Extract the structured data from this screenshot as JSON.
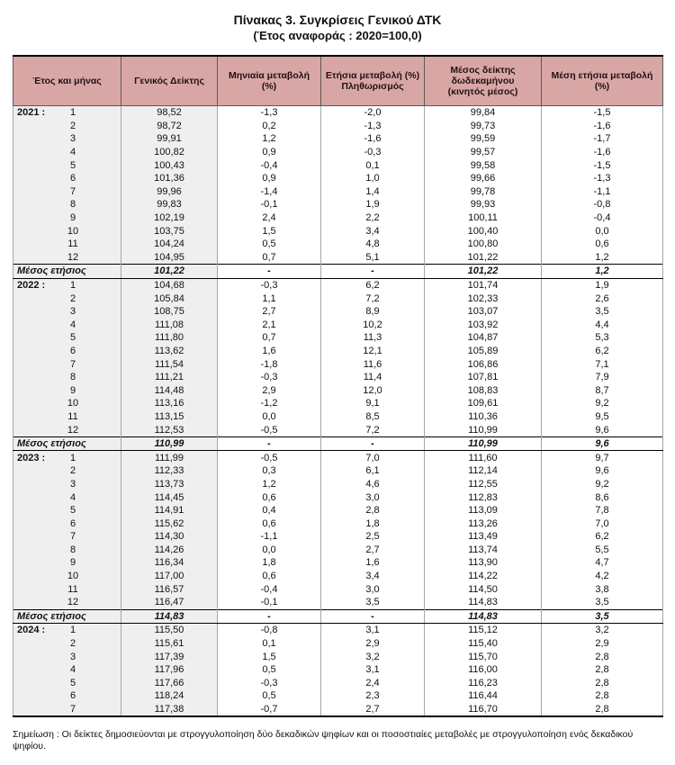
{
  "title": "Πίνακας 3. Συγκρίσεις Γενικού ΔΤΚ",
  "subtitle": "(Έτος αναφοράς : 2020=100,0)",
  "note": "Σημείωση : Οι δείκτες δημοσιεύονται με στρογγυλοποίηση δύο δεκαδικών ψηφίων και οι ποσοστιαίες μεταβολές με στρογγυλοποίηση ενός δεκαδικού ψηφίου.",
  "colors": {
    "header_bg": "#d9a6a6",
    "shaded_column_bg": "#efefef"
  },
  "table": {
    "headers": [
      "Έτος και μήνας",
      "Γενικός Δείκτης",
      "Μηνιαία μεταβολή\n(%)",
      "Ετήσια μεταβολή (%)\nΠληθωρισμός",
      "Μέσος δείκτης\nδωδεκαμήνου\n(κινητός μέσος)",
      "Μέση ετήσια μεταβολή\n(%)"
    ],
    "groups": [
      {
        "year_label": "2021 :",
        "rows": [
          {
            "month": "1",
            "values": [
              "98,52",
              "-1,3",
              "-2,0",
              "99,84",
              "-1,5"
            ]
          },
          {
            "month": "2",
            "values": [
              "98,72",
              "0,2",
              "-1,3",
              "99,73",
              "-1,6"
            ]
          },
          {
            "month": "3",
            "values": [
              "99,91",
              "1,2",
              "-1,6",
              "99,59",
              "-1,7"
            ]
          },
          {
            "month": "4",
            "values": [
              "100,82",
              "0,9",
              "-0,3",
              "99,57",
              "-1,6"
            ]
          },
          {
            "month": "5",
            "values": [
              "100,43",
              "-0,4",
              "0,1",
              "99,58",
              "-1,5"
            ]
          },
          {
            "month": "6",
            "values": [
              "101,36",
              "0,9",
              "1,0",
              "99,66",
              "-1,3"
            ]
          },
          {
            "month": "7",
            "values": [
              "99,96",
              "-1,4",
              "1,4",
              "99,78",
              "-1,1"
            ]
          },
          {
            "month": "8",
            "values": [
              "99,83",
              "-0,1",
              "1,9",
              "99,93",
              "-0,8"
            ]
          },
          {
            "month": "9",
            "values": [
              "102,19",
              "2,4",
              "2,2",
              "100,11",
              "-0,4"
            ]
          },
          {
            "month": "10",
            "values": [
              "103,75",
              "1,5",
              "3,4",
              "100,40",
              "0,0"
            ]
          },
          {
            "month": "11",
            "values": [
              "104,24",
              "0,5",
              "4,8",
              "100,80",
              "0,6"
            ]
          },
          {
            "month": "12",
            "values": [
              "104,95",
              "0,7",
              "5,1",
              "101,22",
              "1,2"
            ]
          }
        ],
        "average": {
          "label": "Μέσος ετήσιος",
          "values": [
            "101,22",
            "-",
            "-",
            "101,22",
            "1,2"
          ]
        }
      },
      {
        "year_label": "2022 :",
        "rows": [
          {
            "month": "1",
            "values": [
              "104,68",
              "-0,3",
              "6,2",
              "101,74",
              "1,9"
            ]
          },
          {
            "month": "2",
            "values": [
              "105,84",
              "1,1",
              "7,2",
              "102,33",
              "2,6"
            ]
          },
          {
            "month": "3",
            "values": [
              "108,75",
              "2,7",
              "8,9",
              "103,07",
              "3,5"
            ]
          },
          {
            "month": "4",
            "values": [
              "111,08",
              "2,1",
              "10,2",
              "103,92",
              "4,4"
            ]
          },
          {
            "month": "5",
            "values": [
              "111,80",
              "0,7",
              "11,3",
              "104,87",
              "5,3"
            ]
          },
          {
            "month": "6",
            "values": [
              "113,62",
              "1,6",
              "12,1",
              "105,89",
              "6,2"
            ]
          },
          {
            "month": "7",
            "values": [
              "111,54",
              "-1,8",
              "11,6",
              "106,86",
              "7,1"
            ]
          },
          {
            "month": "8",
            "values": [
              "111,21",
              "-0,3",
              "11,4",
              "107,81",
              "7,9"
            ]
          },
          {
            "month": "9",
            "values": [
              "114,48",
              "2,9",
              "12,0",
              "108,83",
              "8,7"
            ]
          },
          {
            "month": "10",
            "values": [
              "113,16",
              "-1,2",
              "9,1",
              "109,61",
              "9,2"
            ]
          },
          {
            "month": "11",
            "values": [
              "113,15",
              "0,0",
              "8,5",
              "110,36",
              "9,5"
            ]
          },
          {
            "month": "12",
            "values": [
              "112,53",
              "-0,5",
              "7,2",
              "110,99",
              "9,6"
            ]
          }
        ],
        "average": {
          "label": "Μέσος ετήσιος",
          "values": [
            "110,99",
            "-",
            "-",
            "110,99",
            "9,6"
          ]
        }
      },
      {
        "year_label": "2023 :",
        "rows": [
          {
            "month": "1",
            "values": [
              "111,99",
              "-0,5",
              "7,0",
              "111,60",
              "9,7"
            ]
          },
          {
            "month": "2",
            "values": [
              "112,33",
              "0,3",
              "6,1",
              "112,14",
              "9,6"
            ]
          },
          {
            "month": "3",
            "values": [
              "113,73",
              "1,2",
              "4,6",
              "112,55",
              "9,2"
            ]
          },
          {
            "month": "4",
            "values": [
              "114,45",
              "0,6",
              "3,0",
              "112,83",
              "8,6"
            ]
          },
          {
            "month": "5",
            "values": [
              "114,91",
              "0,4",
              "2,8",
              "113,09",
              "7,8"
            ]
          },
          {
            "month": "6",
            "values": [
              "115,62",
              "0,6",
              "1,8",
              "113,26",
              "7,0"
            ]
          },
          {
            "month": "7",
            "values": [
              "114,30",
              "-1,1",
              "2,5",
              "113,49",
              "6,2"
            ]
          },
          {
            "month": "8",
            "values": [
              "114,26",
              "0,0",
              "2,7",
              "113,74",
              "5,5"
            ]
          },
          {
            "month": "9",
            "values": [
              "116,34",
              "1,8",
              "1,6",
              "113,90",
              "4,7"
            ]
          },
          {
            "month": "10",
            "values": [
              "117,00",
              "0,6",
              "3,4",
              "114,22",
              "4,2"
            ]
          },
          {
            "month": "11",
            "values": [
              "116,57",
              "-0,4",
              "3,0",
              "114,50",
              "3,8"
            ]
          },
          {
            "month": "12",
            "values": [
              "116,47",
              "-0,1",
              "3,5",
              "114,83",
              "3,5"
            ]
          }
        ],
        "average": {
          "label": "Μέσος ετήσιος",
          "values": [
            "114,83",
            "-",
            "-",
            "114,83",
            "3,5"
          ]
        }
      },
      {
        "year_label": "2024 :",
        "rows": [
          {
            "month": "1",
            "values": [
              "115,50",
              "-0,8",
              "3,1",
              "115,12",
              "3,2"
            ]
          },
          {
            "month": "2",
            "values": [
              "115,61",
              "0,1",
              "2,9",
              "115,40",
              "2,9"
            ]
          },
          {
            "month": "3",
            "values": [
              "117,39",
              "1,5",
              "3,2",
              "115,70",
              "2,8"
            ]
          },
          {
            "month": "4",
            "values": [
              "117,96",
              "0,5",
              "3,1",
              "116,00",
              "2,8"
            ]
          },
          {
            "month": "5",
            "values": [
              "117,66",
              "-0,3",
              "2,4",
              "116,23",
              "2,8"
            ]
          },
          {
            "month": "6",
            "values": [
              "118,24",
              "0,5",
              "2,3",
              "116,44",
              "2,8"
            ]
          },
          {
            "month": "7",
            "values": [
              "117,38",
              "-0,7",
              "2,7",
              "116,70",
              "2,8"
            ]
          }
        ],
        "average": null
      }
    ]
  }
}
